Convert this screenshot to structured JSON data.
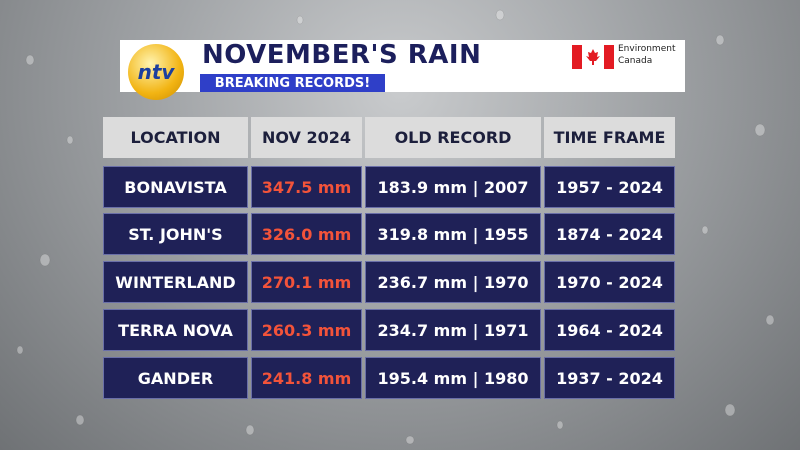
{
  "header": {
    "logo": "ntv",
    "title": "NOVEMBER'S RAIN",
    "subtitle": "BREAKING RECORDS!",
    "source": [
      "Environment",
      "Canada"
    ]
  },
  "table": {
    "columns": [
      "LOCATION",
      "NOV 2024",
      "OLD RECORD",
      "TIME FRAME"
    ],
    "rows": [
      [
        "BONAVISTA",
        "347.5 mm",
        "183.9 mm | 2007",
        "1957 - 2024"
      ],
      [
        "ST. JOHN'S",
        "326.0 mm",
        "319.8 mm | 1955",
        "1874 - 2024"
      ],
      [
        "WINTERLAND",
        "270.1 mm",
        "236.7 mm | 1970",
        "1970 - 2024"
      ],
      [
        "TERRA NOVA",
        "260.3 mm",
        "234.7 mm | 1971",
        "1964 - 2024"
      ],
      [
        "GANDER",
        "241.8 mm",
        "195.4 mm | 1980",
        "1937 - 2024"
      ]
    ]
  }
}
